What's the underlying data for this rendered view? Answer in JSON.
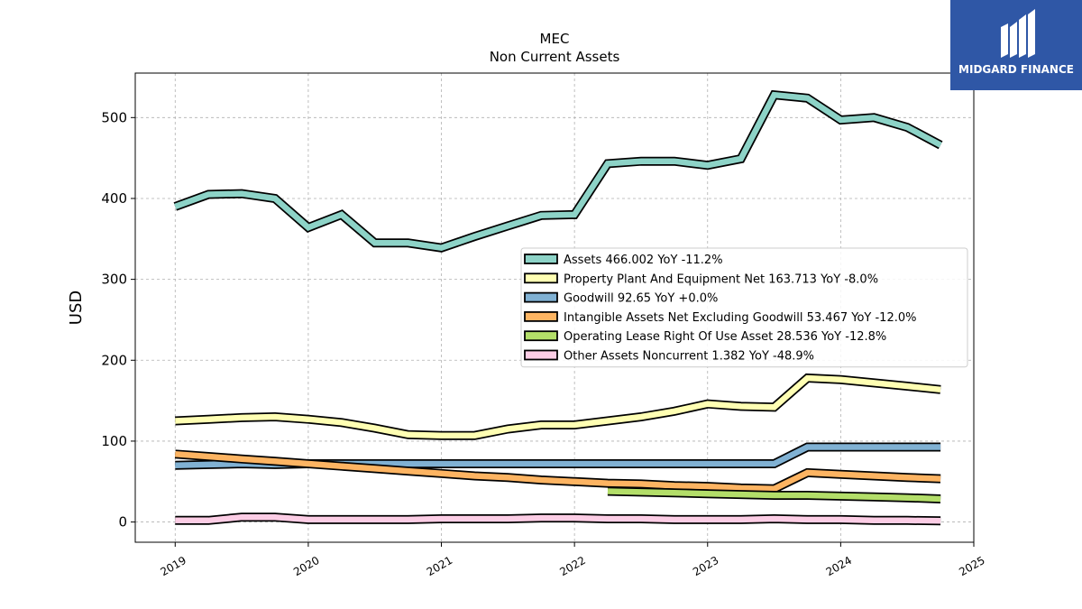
{
  "brand": {
    "logo_text": "MIDGARD FINANCE",
    "logo_color": "#2f57a6"
  },
  "chart_data": {
    "type": "line",
    "title": "MEC",
    "subtitle": "Non Current  Assets",
    "xlabel": "",
    "ylabel": "USD",
    "x_ticks": [
      "2019",
      "2020",
      "2021",
      "2022",
      "2023",
      "2024",
      "2025"
    ],
    "y_ticks": [
      0,
      100,
      200,
      300,
      400,
      500
    ],
    "xlim": [
      2018.7,
      2025.0
    ],
    "ylim": [
      -25,
      555
    ],
    "grid": true,
    "legend_position": "center-right",
    "series": [
      {
        "name": "Assets",
        "legend": "Assets  466.002 YoY -11.2%",
        "color": "#8dd3c7",
        "points": [
          [
            2019.0,
            390
          ],
          [
            2019.25,
            405
          ],
          [
            2019.5,
            406
          ],
          [
            2019.75,
            400
          ],
          [
            2020.0,
            364
          ],
          [
            2020.25,
            380
          ],
          [
            2020.5,
            345
          ],
          [
            2020.75,
            345
          ],
          [
            2021.0,
            339
          ],
          [
            2021.25,
            353
          ],
          [
            2021.5,
            366
          ],
          [
            2021.75,
            379
          ],
          [
            2022.0,
            380
          ],
          [
            2022.25,
            443
          ],
          [
            2022.5,
            446
          ],
          [
            2022.75,
            446
          ],
          [
            2023.0,
            441
          ],
          [
            2023.25,
            449
          ],
          [
            2023.5,
            528
          ],
          [
            2023.75,
            524
          ],
          [
            2024.0,
            497
          ],
          [
            2024.25,
            500
          ],
          [
            2024.5,
            488
          ],
          [
            2024.75,
            466
          ]
        ]
      },
      {
        "name": "Property Plant And Equipment Net",
        "legend": "Property Plant And Equipment Net  163.713 YoY -8.0%",
        "color": "#ffffb3",
        "points": [
          [
            2019.0,
            125
          ],
          [
            2019.25,
            127
          ],
          [
            2019.5,
            129
          ],
          [
            2019.75,
            130
          ],
          [
            2020.0,
            127
          ],
          [
            2020.25,
            123
          ],
          [
            2020.5,
            116
          ],
          [
            2020.75,
            108
          ],
          [
            2021.0,
            107
          ],
          [
            2021.25,
            107
          ],
          [
            2021.5,
            115
          ],
          [
            2021.75,
            120
          ],
          [
            2022.0,
            120
          ],
          [
            2022.25,
            125
          ],
          [
            2022.5,
            130
          ],
          [
            2022.75,
            137
          ],
          [
            2023.0,
            146
          ],
          [
            2023.25,
            143
          ],
          [
            2023.5,
            142
          ],
          [
            2023.75,
            178
          ],
          [
            2024.0,
            176
          ],
          [
            2024.25,
            172
          ],
          [
            2024.5,
            168
          ],
          [
            2024.75,
            163.7
          ]
        ]
      },
      {
        "name": "Goodwill",
        "legend": "Goodwill  92.65 YoY +0.0%",
        "color": "#80b1d3",
        "points": [
          [
            2019.0,
            70
          ],
          [
            2019.25,
            71
          ],
          [
            2019.5,
            72
          ],
          [
            2019.75,
            71
          ],
          [
            2020.0,
            72
          ],
          [
            2020.25,
            72
          ],
          [
            2020.5,
            72
          ],
          [
            2020.75,
            72
          ],
          [
            2021.0,
            72
          ],
          [
            2021.25,
            72
          ],
          [
            2021.5,
            72
          ],
          [
            2021.75,
            72
          ],
          [
            2022.0,
            72
          ],
          [
            2022.25,
            72
          ],
          [
            2022.5,
            72
          ],
          [
            2022.75,
            72
          ],
          [
            2023.0,
            72
          ],
          [
            2023.25,
            72
          ],
          [
            2023.5,
            72
          ],
          [
            2023.75,
            92.65
          ],
          [
            2024.0,
            92.65
          ],
          [
            2024.25,
            92.65
          ],
          [
            2024.5,
            92.65
          ],
          [
            2024.75,
            92.65
          ]
        ]
      },
      {
        "name": "Intangible Assets Net Excluding Goodwill",
        "legend": "Intangible Assets Net Excluding Goodwill  53.467 YoY -12.0%",
        "color": "#fdb462",
        "points": [
          [
            2019.0,
            84
          ],
          [
            2019.25,
            81
          ],
          [
            2019.5,
            78
          ],
          [
            2019.75,
            75
          ],
          [
            2020.0,
            72
          ],
          [
            2020.25,
            69
          ],
          [
            2020.5,
            66
          ],
          [
            2020.75,
            63
          ],
          [
            2021.0,
            60
          ],
          [
            2021.25,
            57
          ],
          [
            2021.5,
            55
          ],
          [
            2021.75,
            52
          ],
          [
            2022.0,
            50
          ],
          [
            2022.25,
            48
          ],
          [
            2022.5,
            47
          ],
          [
            2022.75,
            45
          ],
          [
            2023.0,
            44
          ],
          [
            2023.25,
            42
          ],
          [
            2023.5,
            41
          ],
          [
            2023.75,
            61
          ],
          [
            2024.0,
            59
          ],
          [
            2024.25,
            57
          ],
          [
            2024.5,
            55
          ],
          [
            2024.75,
            53.5
          ]
        ]
      },
      {
        "name": "Operating Lease Right Of Use Asset",
        "legend": "Operating Lease Right Of Use Asset  28.536 YoY -12.8%",
        "color": "#b3de69",
        "points": [
          [
            2022.25,
            38
          ],
          [
            2022.5,
            37
          ],
          [
            2022.75,
            36
          ],
          [
            2023.0,
            35
          ],
          [
            2023.25,
            34
          ],
          [
            2023.5,
            33
          ],
          [
            2023.75,
            33
          ],
          [
            2024.0,
            32
          ],
          [
            2024.25,
            31
          ],
          [
            2024.5,
            30
          ],
          [
            2024.75,
            28.5
          ]
        ]
      },
      {
        "name": "Other Assets Noncurrent",
        "legend": "Other Assets Noncurrent  1.382 YoY -48.9%",
        "color": "#fccde5",
        "points": [
          [
            2019.0,
            2
          ],
          [
            2019.25,
            2
          ],
          [
            2019.5,
            6
          ],
          [
            2019.75,
            6
          ],
          [
            2020.0,
            3
          ],
          [
            2020.25,
            3
          ],
          [
            2020.5,
            3
          ],
          [
            2020.75,
            3
          ],
          [
            2021.0,
            4
          ],
          [
            2021.25,
            4
          ],
          [
            2021.5,
            4
          ],
          [
            2021.75,
            5
          ],
          [
            2022.0,
            5
          ],
          [
            2022.25,
            4
          ],
          [
            2022.5,
            4
          ],
          [
            2022.75,
            3
          ],
          [
            2023.0,
            3
          ],
          [
            2023.25,
            3
          ],
          [
            2023.5,
            4
          ],
          [
            2023.75,
            3
          ],
          [
            2024.0,
            3
          ],
          [
            2024.25,
            2
          ],
          [
            2024.5,
            2
          ],
          [
            2024.75,
            1.4
          ]
        ]
      }
    ]
  }
}
